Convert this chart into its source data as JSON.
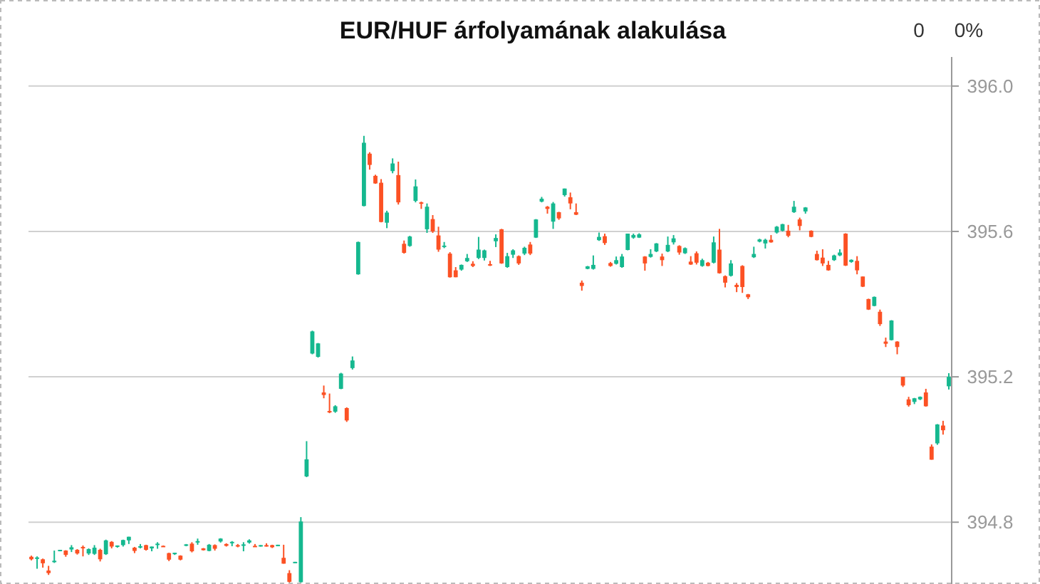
{
  "chart_data": {
    "type": "candlestick",
    "title": "EUR/HUF árfolyamának alakulása",
    "annotations": [
      "0",
      "0%"
    ],
    "colors": [
      "#fc5124",
      "#15b88f",
      "#fc5124",
      "#fc5124",
      "#15b88f",
      "#15b88f",
      "#fc5124",
      "#15b88f",
      "#fc5124",
      "#fc5124",
      "#15b88f",
      "#15b88f",
      "#fc5124",
      "#15b88f",
      "#fc5124",
      "#15b88f",
      "#15b88f",
      "#15b88f",
      "#fc5124",
      "#15b88f",
      "#fc5124",
      "#15b88f",
      "#15b88f",
      "#fc5124",
      "#fc5124",
      "#15b88f",
      "#fc5124",
      "#15b88f",
      "#fc5124",
      "#15b88f",
      "#fc5124",
      "#15b88f",
      "#fc5124",
      "#15b88f",
      "#fc5124",
      "#15b88f",
      "#fc5124",
      "#15b88f",
      "#15b88f",
      "#fc5124",
      "#15b88f",
      "#fc5124",
      "#fc5124",
      "#15b88f",
      "#fc5124",
      "#fc5124",
      "#15b88f",
      "#15b88f",
      "#15b88f",
      "#15b88f",
      "#15b88f",
      "#fc5124",
      "#fc5124",
      "#15b88f",
      "#15b88f",
      "#fc5124",
      "#15b88f",
      "#15b88f",
      "#15b88f",
      "#fc5124",
      "#fc5124",
      "#fc5124",
      "#15b88f",
      "#15b88f",
      "#fc5124",
      "#fc5124",
      "#15b88f",
      "#15b88f",
      "#fc5124",
      "#15b88f",
      "#fc5124",
      "#fc5124",
      "#15b88f",
      "#fc5124",
      "#fc5124",
      "#15b88f",
      "#15b88f",
      "#fc5124",
      "#15b88f",
      "#15b88f",
      "#fc5124",
      "#15b88f",
      "#fc5124",
      "#15b88f",
      "#15b88f",
      "#fc5124",
      "#15b88f",
      "#fc5124",
      "#15b88f",
      "#15b88f",
      "#fc5124",
      "#15b88f",
      "#fc5124",
      "#15b88f",
      "#fc5124",
      "#fc5124",
      "#fc5124",
      "#15b88f",
      "#15b88f",
      "#15b88f",
      "#fc5124",
      "#fc5124",
      "#15b88f",
      "#15b88f",
      "#15b88f",
      "#15b88f",
      "#15b88f",
      "#fc5124",
      "#15b88f",
      "#15b88f",
      "#fc5124",
      "#15b88f",
      "#15b88f",
      "#fc5124",
      "#15b88f",
      "#fc5124",
      "#fc5124",
      "#15b88f",
      "#fc5124",
      "#15b88f",
      "#fc5124",
      "#fc5124",
      "#15b88f",
      "#fc5124",
      "#fc5124",
      "#fc5124",
      "#15b88f",
      "#15b88f",
      "#15b88f",
      "#fc5124",
      "#15b88f",
      "#15b88f",
      "#fc5124",
      "#15b88f",
      "#fc5124",
      "#15b88f",
      "#fc5124",
      "#fc5124",
      "#fc5124",
      "#fc5124",
      "#15b88f",
      "#15b88f",
      "#fc5124",
      "#15b88f",
      "#fc5124",
      "#fc5124",
      "#fc5124",
      "#15b88f",
      "#fc5124",
      "#fc5124",
      "#15b88f",
      "#fc5124",
      "#fc5124",
      "#fc5124",
      "#15b88f",
      "#15b88f",
      "#fc5124",
      "#fc5124",
      "#15b88f",
      "#fc5124",
      "#15b88f"
    ],
    "ylim": [
      394.63,
      396.08
    ],
    "yticks": [
      {
        "value": 394.8,
        "label": "394.8"
      },
      {
        "value": 395.2,
        "label": "395.2"
      },
      {
        "value": 395.6,
        "label": "395.6"
      },
      {
        "value": 396,
        "label": "396.0"
      }
    ],
    "grid": "y",
    "tick_labels": "y",
    "categories": [
      null,
      null,
      null,
      null,
      null,
      null,
      null,
      null,
      null,
      null,
      null,
      null,
      null,
      null,
      null,
      null,
      null,
      null,
      null,
      null,
      null,
      null,
      null,
      null,
      null,
      null,
      null,
      null,
      null,
      null,
      null,
      null,
      null,
      null,
      null,
      null,
      null,
      null,
      null,
      null,
      null,
      null,
      null,
      null,
      null,
      null,
      null,
      null,
      null,
      null,
      null,
      null,
      null,
      null,
      null,
      null,
      null,
      null,
      null,
      null,
      null,
      null,
      null,
      null,
      null,
      null,
      null,
      null,
      null,
      null,
      null,
      null,
      null,
      null,
      null,
      null,
      null,
      null,
      null,
      null,
      null,
      null,
      null,
      null,
      null,
      null,
      null,
      null,
      null,
      null,
      null,
      null,
      null,
      null,
      null,
      null,
      null,
      null,
      null,
      null,
      null,
      null,
      null,
      null,
      null,
      null,
      null,
      null,
      null,
      null,
      null,
      null,
      null,
      null,
      null,
      null,
      null,
      null,
      null,
      null,
      null,
      null,
      null,
      null,
      null,
      null,
      null,
      null,
      null,
      null,
      null,
      null,
      null,
      null,
      null,
      null,
      null,
      null,
      null,
      null,
      null,
      null,
      null,
      null,
      null,
      null,
      null,
      null,
      null,
      null,
      null,
      null,
      null,
      null,
      null,
      null,
      null,
      null,
      null,
      null,
      null
    ],
    "ohlc": [
      [
        394.705,
        394.708,
        394.695,
        394.698
      ],
      [
        394.7,
        394.706,
        394.672,
        394.703
      ],
      [
        394.698,
        394.7,
        394.675,
        394.687
      ],
      [
        394.667,
        394.68,
        394.655,
        394.66
      ],
      [
        394.69,
        394.722,
        394.688,
        394.694
      ],
      [
        394.722,
        394.724,
        394.72,
        394.724
      ],
      [
        394.722,
        394.723,
        394.705,
        394.71
      ],
      [
        394.725,
        394.737,
        394.718,
        394.731
      ],
      [
        394.724,
        394.726,
        394.711,
        394.714
      ],
      [
        394.732,
        394.736,
        394.706,
        394.73
      ],
      [
        394.714,
        394.728,
        394.71,
        394.726
      ],
      [
        394.713,
        394.737,
        394.71,
        394.73
      ],
      [
        394.724,
        394.727,
        394.692,
        394.698
      ],
      [
        394.712,
        394.752,
        394.71,
        394.75
      ],
      [
        394.746,
        394.748,
        394.728,
        394.733
      ],
      [
        394.733,
        394.736,
        394.73,
        394.736
      ],
      [
        394.737,
        394.752,
        394.733,
        394.751
      ],
      [
        394.75,
        394.76,
        394.74,
        394.76
      ],
      [
        394.73,
        394.732,
        394.715,
        394.721
      ],
      [
        394.733,
        394.74,
        394.728,
        394.734
      ],
      [
        394.737,
        394.738,
        394.722,
        394.724
      ],
      [
        394.728,
        394.733,
        394.72,
        394.733
      ],
      [
        394.74,
        394.745,
        394.727,
        394.741
      ],
      [
        394.735,
        394.736,
        394.732,
        394.733
      ],
      [
        394.715,
        394.716,
        394.693,
        394.697
      ],
      [
        394.712,
        394.716,
        394.71,
        394.716
      ],
      [
        394.708,
        394.709,
        394.695,
        394.697
      ],
      [
        394.737,
        394.74,
        394.734,
        394.739
      ],
      [
        394.741,
        394.745,
        394.717,
        394.72
      ],
      [
        394.744,
        394.755,
        394.738,
        394.748
      ],
      [
        394.728,
        394.729,
        394.722,
        394.723
      ],
      [
        394.721,
        394.74,
        394.72,
        394.738
      ],
      [
        394.737,
        394.739,
        394.722,
        394.727
      ],
      [
        394.747,
        394.756,
        394.744,
        394.755
      ],
      [
        394.74,
        394.742,
        394.733,
        394.735
      ],
      [
        394.745,
        394.748,
        394.734,
        394.746
      ],
      [
        394.737,
        394.74,
        394.731,
        394.733
      ],
      [
        394.735,
        394.745,
        394.72,
        394.739
      ],
      [
        394.744,
        394.753,
        394.741,
        394.75
      ],
      [
        394.735,
        394.74,
        394.733,
        394.734
      ],
      [
        394.736,
        394.737,
        394.733,
        394.737
      ],
      [
        394.737,
        394.742,
        394.733,
        394.733
      ],
      [
        394.737,
        394.738,
        394.729,
        394.731
      ],
      [
        394.736,
        394.738,
        394.735,
        394.738
      ],
      [
        394.702,
        394.738,
        394.686,
        394.686
      ],
      [
        394.66,
        394.668,
        394.634,
        394.636
      ],
      [
        394.689,
        394.691,
        394.688,
        394.691
      ],
      [
        394.635,
        394.814,
        394.634,
        394.802
      ],
      [
        394.926,
        395.023,
        394.924,
        394.973
      ],
      [
        395.264,
        395.327,
        395.262,
        395.325
      ],
      [
        395.255,
        395.293,
        395.253,
        395.292
      ],
      [
        395.157,
        395.176,
        395.141,
        395.15
      ],
      [
        395.106,
        395.154,
        395.1,
        395.102
      ],
      [
        395.104,
        395.122,
        395.101,
        395.119
      ],
      [
        395.167,
        395.211,
        395.166,
        395.209
      ],
      [
        395.114,
        395.116,
        395.076,
        395.08
      ],
      [
        395.224,
        395.256,
        395.22,
        395.245
      ],
      [
        395.482,
        395.572,
        395.481,
        395.571
      ],
      [
        395.67,
        395.863,
        395.669,
        395.844
      ],
      [
        395.814,
        395.818,
        395.77,
        395.783
      ],
      [
        395.753,
        395.756,
        395.731,
        395.732
      ],
      [
        395.734,
        395.744,
        395.625,
        395.626
      ],
      [
        395.624,
        395.657,
        395.609,
        395.652
      ],
      [
        395.766,
        395.801,
        395.76,
        395.787
      ],
      [
        395.755,
        395.792,
        395.674,
        395.68
      ],
      [
        395.566,
        395.575,
        395.539,
        395.541
      ],
      [
        395.56,
        395.588,
        395.558,
        395.586
      ],
      [
        395.684,
        395.743,
        395.68,
        395.724
      ],
      [
        395.68,
        395.682,
        395.662,
        395.678
      ],
      [
        395.606,
        395.677,
        395.596,
        395.668
      ],
      [
        395.634,
        395.645,
        395.596,
        395.6
      ],
      [
        395.589,
        395.613,
        395.544,
        395.55
      ],
      [
        395.559,
        395.571,
        395.554,
        395.561
      ],
      [
        395.539,
        395.543,
        395.473,
        395.474
      ],
      [
        395.493,
        395.502,
        395.474,
        395.474
      ],
      [
        395.495,
        395.509,
        395.492,
        395.508
      ],
      [
        395.518,
        395.538,
        395.516,
        395.527
      ],
      [
        395.511,
        395.518,
        395.502,
        395.505
      ],
      [
        395.527,
        395.585,
        395.524,
        395.55
      ],
      [
        395.527,
        395.55,
        395.52,
        395.548
      ],
      [
        395.51,
        395.519,
        395.505,
        395.506
      ],
      [
        395.573,
        395.592,
        395.557,
        395.582
      ],
      [
        395.606,
        395.607,
        395.511,
        395.512
      ],
      [
        395.502,
        395.541,
        395.5,
        395.532
      ],
      [
        395.536,
        395.551,
        395.527,
        395.548
      ],
      [
        395.532,
        395.534,
        395.508,
        395.512
      ],
      [
        395.539,
        395.558,
        395.535,
        395.555
      ],
      [
        395.564,
        395.571,
        395.535,
        395.539
      ],
      [
        395.583,
        395.634,
        395.582,
        395.633
      ],
      [
        395.682,
        395.695,
        395.68,
        395.69
      ],
      [
        395.668,
        395.67,
        395.649,
        395.662
      ],
      [
        395.627,
        395.681,
        395.607,
        395.677
      ],
      [
        395.653,
        395.654,
        395.632,
        395.636
      ],
      [
        395.7,
        395.718,
        395.696,
        395.718
      ],
      [
        395.694,
        395.707,
        395.661,
        395.677
      ],
      [
        395.653,
        395.677,
        395.645,
        395.646
      ],
      [
        395.459,
        395.465,
        395.437,
        395.45
      ],
      [
        395.497,
        395.505,
        395.496,
        395.504
      ],
      [
        395.497,
        395.534,
        395.495,
        395.508
      ],
      [
        395.576,
        395.597,
        395.574,
        395.585
      ],
      [
        395.587,
        395.594,
        395.563,
        395.568
      ],
      [
        395.513,
        395.516,
        395.503,
        395.505
      ],
      [
        395.511,
        395.531,
        395.509,
        395.521
      ],
      [
        395.502,
        395.538,
        395.5,
        395.531
      ],
      [
        395.549,
        395.594,
        395.548,
        395.594
      ],
      [
        395.583,
        395.594,
        395.58,
        395.59
      ],
      [
        395.583,
        395.595,
        395.582,
        395.592
      ],
      [
        395.531,
        395.532,
        395.492,
        395.512
      ],
      [
        395.53,
        395.551,
        395.528,
        395.538
      ],
      [
        395.545,
        395.568,
        395.543,
        395.567
      ],
      [
        395.531,
        395.539,
        395.505,
        395.521
      ],
      [
        395.545,
        395.586,
        395.543,
        395.563
      ],
      [
        395.57,
        395.59,
        395.564,
        395.581
      ],
      [
        395.56,
        395.562,
        395.536,
        395.542
      ],
      [
        395.54,
        395.556,
        395.538,
        395.554
      ],
      [
        395.517,
        395.532,
        395.508,
        395.509
      ],
      [
        395.54,
        395.545,
        395.509,
        395.514
      ],
      [
        395.505,
        395.525,
        395.503,
        395.521
      ],
      [
        395.514,
        395.516,
        395.504,
        395.505
      ],
      [
        395.514,
        395.586,
        395.512,
        395.57
      ],
      [
        395.55,
        395.607,
        395.484,
        395.485
      ],
      [
        395.477,
        395.479,
        395.446,
        395.459
      ],
      [
        395.478,
        395.521,
        395.476,
        395.512
      ],
      [
        395.453,
        395.458,
        395.433,
        395.447
      ],
      [
        395.505,
        395.507,
        395.431,
        395.447
      ],
      [
        395.427,
        395.428,
        395.414,
        395.419
      ],
      [
        395.529,
        395.558,
        395.527,
        395.538
      ],
      [
        395.572,
        395.58,
        395.57,
        395.578
      ],
      [
        395.567,
        395.58,
        395.553,
        395.577
      ],
      [
        395.577,
        395.59,
        395.569,
        395.57
      ],
      [
        395.597,
        395.615,
        395.594,
        395.613
      ],
      [
        395.602,
        395.621,
        395.6,
        395.62
      ],
      [
        395.602,
        395.618,
        395.584,
        395.588
      ],
      [
        395.653,
        395.684,
        395.651,
        395.668
      ],
      [
        395.633,
        395.638,
        395.603,
        395.615
      ],
      [
        395.655,
        395.667,
        395.649,
        395.666
      ],
      [
        395.602,
        395.603,
        395.584,
        395.585
      ],
      [
        395.538,
        395.547,
        395.52,
        395.521
      ],
      [
        395.528,
        395.551,
        395.505,
        395.512
      ],
      [
        395.508,
        395.519,
        395.492,
        395.493
      ],
      [
        395.521,
        395.536,
        395.519,
        395.534
      ],
      [
        395.534,
        395.551,
        395.532,
        395.542
      ],
      [
        395.594,
        395.595,
        395.505,
        395.506
      ],
      [
        395.516,
        395.523,
        395.514,
        395.522
      ],
      [
        395.519,
        395.532,
        395.482,
        395.493
      ],
      [
        395.476,
        395.476,
        395.447,
        395.448
      ],
      [
        395.414,
        395.415,
        395.384,
        395.385
      ],
      [
        395.395,
        395.421,
        395.394,
        395.42
      ],
      [
        395.379,
        395.385,
        395.34,
        395.345
      ],
      [
        395.297,
        395.308,
        395.282,
        395.291
      ],
      [
        395.301,
        395.356,
        395.3,
        395.355
      ],
      [
        395.297,
        395.298,
        395.262,
        395.282
      ],
      [
        395.2,
        395.2,
        395.172,
        395.176
      ],
      [
        395.138,
        395.145,
        395.118,
        395.122
      ],
      [
        395.131,
        395.142,
        395.125,
        395.141
      ],
      [
        395.138,
        395.146,
        395.136,
        395.145
      ],
      [
        395.157,
        395.167,
        395.118,
        395.119
      ],
      [
        395.008,
        395.014,
        394.972,
        394.972
      ],
      [
        395.017,
        395.07,
        395.013,
        395.069
      ],
      [
        395.066,
        395.079,
        395.041,
        395.053
      ],
      [
        395.174,
        395.21,
        395.165,
        395.2
      ]
    ]
  }
}
